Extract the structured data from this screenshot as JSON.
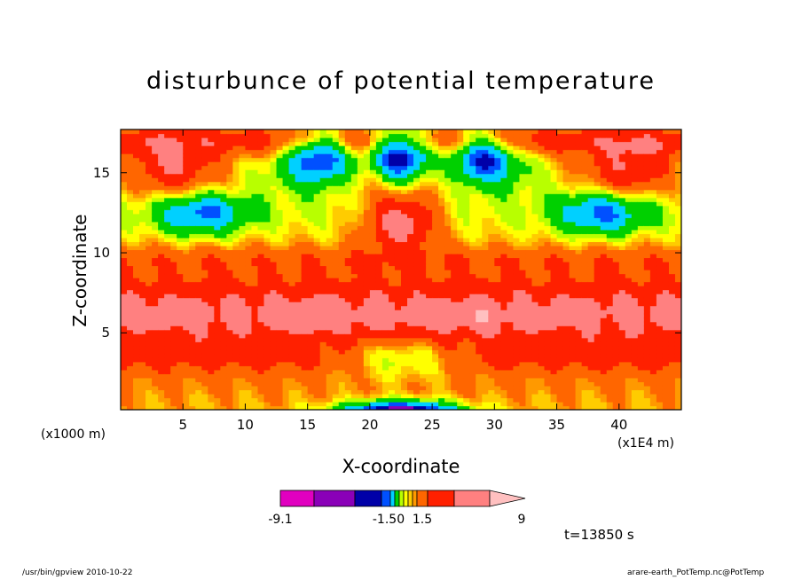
{
  "chart_data": {
    "type": "heatmap",
    "title": "disturbunce of potential temperature",
    "xlabel": "X-coordinate",
    "ylabel": "Z-coordinate",
    "x_unit": "(x1E4 m)",
    "y_unit": "(x1000 m)",
    "xlim": [
      0,
      45
    ],
    "ylim": [
      0.2,
      17.7
    ],
    "x_ticks": [
      5,
      10,
      15,
      20,
      25,
      30,
      35,
      40
    ],
    "y_ticks": [
      5,
      10,
      15
    ],
    "colorbar": {
      "levels": [
        -9.1,
        -7.0,
        -4.5,
        -1.5,
        0,
        1.5,
        3.0,
        6.0,
        9.0
      ],
      "tick_labels": [
        "-9.1",
        "-1.50",
        "1.5",
        "9"
      ],
      "colors": [
        "#e100c0",
        "#8a00b8",
        "#0000a8",
        "#0050ff",
        "#00d0ff",
        "#00d000",
        "#b8ff00",
        "#ffff00",
        "#ffcc00",
        "#ff9900",
        "#ff6600",
        "#ff2000",
        "#ff8080",
        "#ffc0c0"
      ]
    },
    "annotation": "t=13850 s"
  },
  "footer": {
    "left": "/usr/bin/gpview   2010-10-22",
    "right": "arare-earth_PotTemp.nc@PotTemp"
  }
}
